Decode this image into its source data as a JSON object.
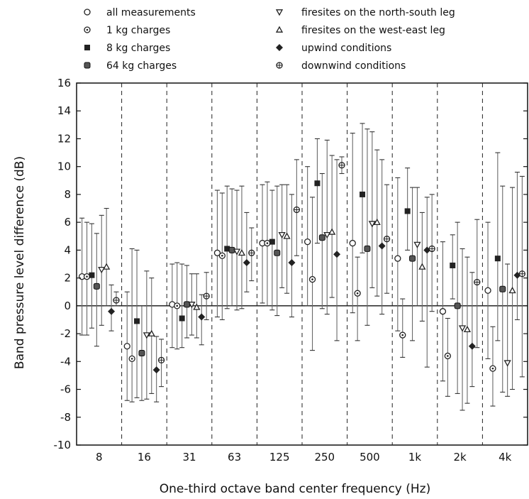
{
  "chart_data": {
    "type": "scatter",
    "ylabel": "Band pressure level difference (dB)",
    "xlabel": "One-third octave band center frequency (Hz)",
    "ylim": [
      -10,
      16
    ],
    "yticks": [
      "-10",
      "-8",
      "-6",
      "-4",
      "-2",
      "0",
      "2",
      "4",
      "6",
      "8",
      "10",
      "12",
      "14",
      "16"
    ],
    "categories": [
      "8",
      "16",
      "31",
      "63",
      "125",
      "250",
      "500",
      "1k",
      "2k",
      "4k"
    ],
    "grid": "vertical dashed separators between bands; solid zero line",
    "legend_position": "top",
    "legend": [
      {
        "marker": "open-circle",
        "label": "all measurements"
      },
      {
        "marker": "circle-dot",
        "label": "1 kg charges"
      },
      {
        "marker": "filled-square",
        "label": "8 kg charges"
      },
      {
        "marker": "filled-square-rounded",
        "label": "64 kg charges"
      },
      {
        "marker": "open-triangle-down",
        "label": "firesites on the north-south leg"
      },
      {
        "marker": "open-triangle-up",
        "label": "firesites on the west-east leg"
      },
      {
        "marker": "filled-diamond",
        "label": "upwind conditions"
      },
      {
        "marker": "circle-cross",
        "label": "downwind conditions"
      }
    ],
    "series": [
      {
        "name": "all measurements",
        "values": [
          2.1,
          -2.9,
          0.1,
          3.8,
          4.5,
          4.6,
          4.5,
          3.4,
          -0.4,
          1.1
        ],
        "low": [
          -2.1,
          -6.8,
          -3.0,
          -0.8,
          0.2,
          0.0,
          -0.5,
          -1.8,
          -5.4,
          -3.8
        ],
        "high": [
          6.3,
          1.0,
          3.0,
          8.3,
          8.7,
          10.0,
          12.4,
          9.2,
          4.6,
          6.0
        ]
      },
      {
        "name": "1 kg charges",
        "values": [
          2.1,
          -3.8,
          0.0,
          3.6,
          4.5,
          1.9,
          0.9,
          -2.1,
          -3.6,
          -4.5
        ],
        "low": [
          -2.1,
          -6.9,
          -3.1,
          -1.0,
          0.0,
          -3.2,
          -2.5,
          -3.7,
          -6.5,
          -7.2
        ],
        "high": [
          6.0,
          4.1,
          3.1,
          8.1,
          8.9,
          7.8,
          3.5,
          0.5,
          -0.9,
          -1.5
        ]
      },
      {
        "name": "8 kg charges",
        "values": [
          2.2,
          -1.1,
          -0.9,
          4.1,
          4.6,
          8.8,
          8.0,
          6.8,
          2.9,
          3.4
        ],
        "low": [
          -1.6,
          -6.6,
          -3.0,
          -0.2,
          -0.3,
          4.5,
          3.8,
          4.0,
          0.5,
          -2.5
        ],
        "high": [
          5.9,
          4.0,
          3.0,
          8.6,
          8.3,
          12.0,
          13.1,
          9.9,
          5.1,
          11.0
        ]
      },
      {
        "name": "64 kg charges",
        "values": [
          1.4,
          -3.4,
          0.1,
          4.0,
          3.8,
          4.9,
          4.1,
          3.4,
          0.0,
          1.2
        ],
        "low": [
          -2.9,
          -6.8,
          -2.3,
          0.0,
          -0.7,
          -0.2,
          -1.4,
          -2.5,
          -6.3,
          -6.2
        ],
        "high": [
          5.2,
          0.0,
          2.9,
          8.4,
          8.6,
          9.5,
          12.7,
          8.5,
          6.0,
          8.6
        ]
      },
      {
        "name": "firesites on the north-south leg",
        "values": [
          2.6,
          -2.1,
          0.1,
          3.9,
          5.1,
          5.1,
          5.9,
          4.4,
          -1.6,
          -4.1
        ],
        "low": [
          -1.4,
          -6.7,
          -2.1,
          -0.3,
          1.3,
          -0.6,
          1.3,
          0.0,
          -7.5,
          -6.5
        ],
        "high": [
          6.5,
          2.5,
          2.3,
          8.3,
          8.7,
          11.9,
          12.5,
          8.5,
          4.1,
          3.0
        ]
      },
      {
        "name": "firesites on the west-east leg",
        "values": [
          2.8,
          -2.0,
          -0.1,
          3.8,
          5.0,
          5.3,
          6.0,
          2.8,
          -1.7,
          1.1
        ],
        "low": [
          0.0,
          -6.3,
          -2.3,
          -0.2,
          0.9,
          0.6,
          0.7,
          -1.1,
          -7.0,
          -6.0
        ],
        "high": [
          7.0,
          2.0,
          2.3,
          8.6,
          8.7,
          10.8,
          11.2,
          6.7,
          3.5,
          8.5
        ]
      },
      {
        "name": "upwind conditions",
        "values": [
          -0.4,
          -4.6,
          -0.8,
          3.1,
          3.1,
          3.7,
          4.3,
          4.0,
          -2.9,
          2.2
        ],
        "low": [
          -1.8,
          -6.9,
          -2.8,
          1.0,
          -0.8,
          -2.5,
          -0.6,
          -4.4,
          -5.8,
          -1.0
        ],
        "high": [
          1.5,
          -2.2,
          0.8,
          6.7,
          8.0,
          10.5,
          10.5,
          7.8,
          2.4,
          9.6
        ]
      },
      {
        "name": "downwind conditions",
        "values": [
          0.4,
          -3.9,
          0.7,
          3.8,
          6.9,
          10.1,
          4.8,
          4.1,
          1.7,
          2.3
        ],
        "low": [
          0.0,
          -5.8,
          -1.0,
          1.8,
          3.6,
          9.5,
          0.9,
          -0.4,
          -3.0,
          -5.1
        ],
        "high": [
          1.0,
          -2.4,
          2.4,
          5.6,
          10.5,
          10.7,
          8.7,
          8.0,
          6.2,
          9.3
        ]
      }
    ]
  }
}
